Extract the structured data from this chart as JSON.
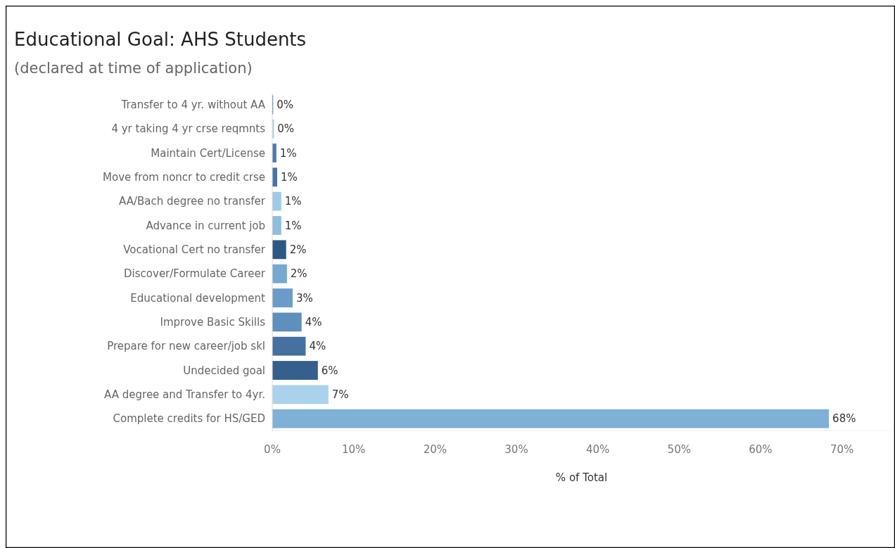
{
  "chart_data": {
    "type": "bar",
    "orientation": "horizontal",
    "title": "Educational Goal: AHS Students",
    "subtitle": "(declared at time of application)",
    "xlabel": "% of Total",
    "categories": [
      "Transfer to 4 yr. without AA",
      "4 yr taking 4 yr crse reqmnts",
      "Maintain Cert/License",
      "Move from noncr to credit crse",
      "AA/Bach degree no transfer",
      "Advance in current job",
      "Vocational Cert no transfer",
      "Discover/Formulate Career",
      "Educational development",
      "Improve Basic Skills",
      "Prepare for new career/job skl",
      "Undecided goal",
      "AA degree and Transfer to 4yr.",
      "Complete credits for HS/GED"
    ],
    "values": [
      0.1,
      0.2,
      0.5,
      0.6,
      1.1,
      1.1,
      1.7,
      1.8,
      2.5,
      3.6,
      4.1,
      5.6,
      6.9,
      68.4
    ],
    "value_labels": [
      "0%",
      "0%",
      "1%",
      "1%",
      "1%",
      "1%",
      "2%",
      "2%",
      "3%",
      "4%",
      "4%",
      "6%",
      "7%",
      "68%"
    ],
    "colors": [
      "#2e5a87",
      "#a6cfe8",
      "#4a7ab0",
      "#4672a6",
      "#9ecae9",
      "#8fbddf",
      "#2c5886",
      "#76a8d1",
      "#6b9cc7",
      "#5f8fbc",
      "#4570a0",
      "#355f8c",
      "#abd2ec",
      "#7fb0d6"
    ],
    "xlim": [
      0,
      76
    ],
    "xticks": [
      {
        "value": 0,
        "label": "0%"
      },
      {
        "value": 10,
        "label": "10%"
      },
      {
        "value": 20,
        "label": "20%"
      },
      {
        "value": 30,
        "label": "30%"
      },
      {
        "value": 40,
        "label": "40%"
      },
      {
        "value": 50,
        "label": "50%"
      },
      {
        "value": 60,
        "label": "60%"
      },
      {
        "value": 70,
        "label": "70%"
      }
    ],
    "grid": false
  }
}
